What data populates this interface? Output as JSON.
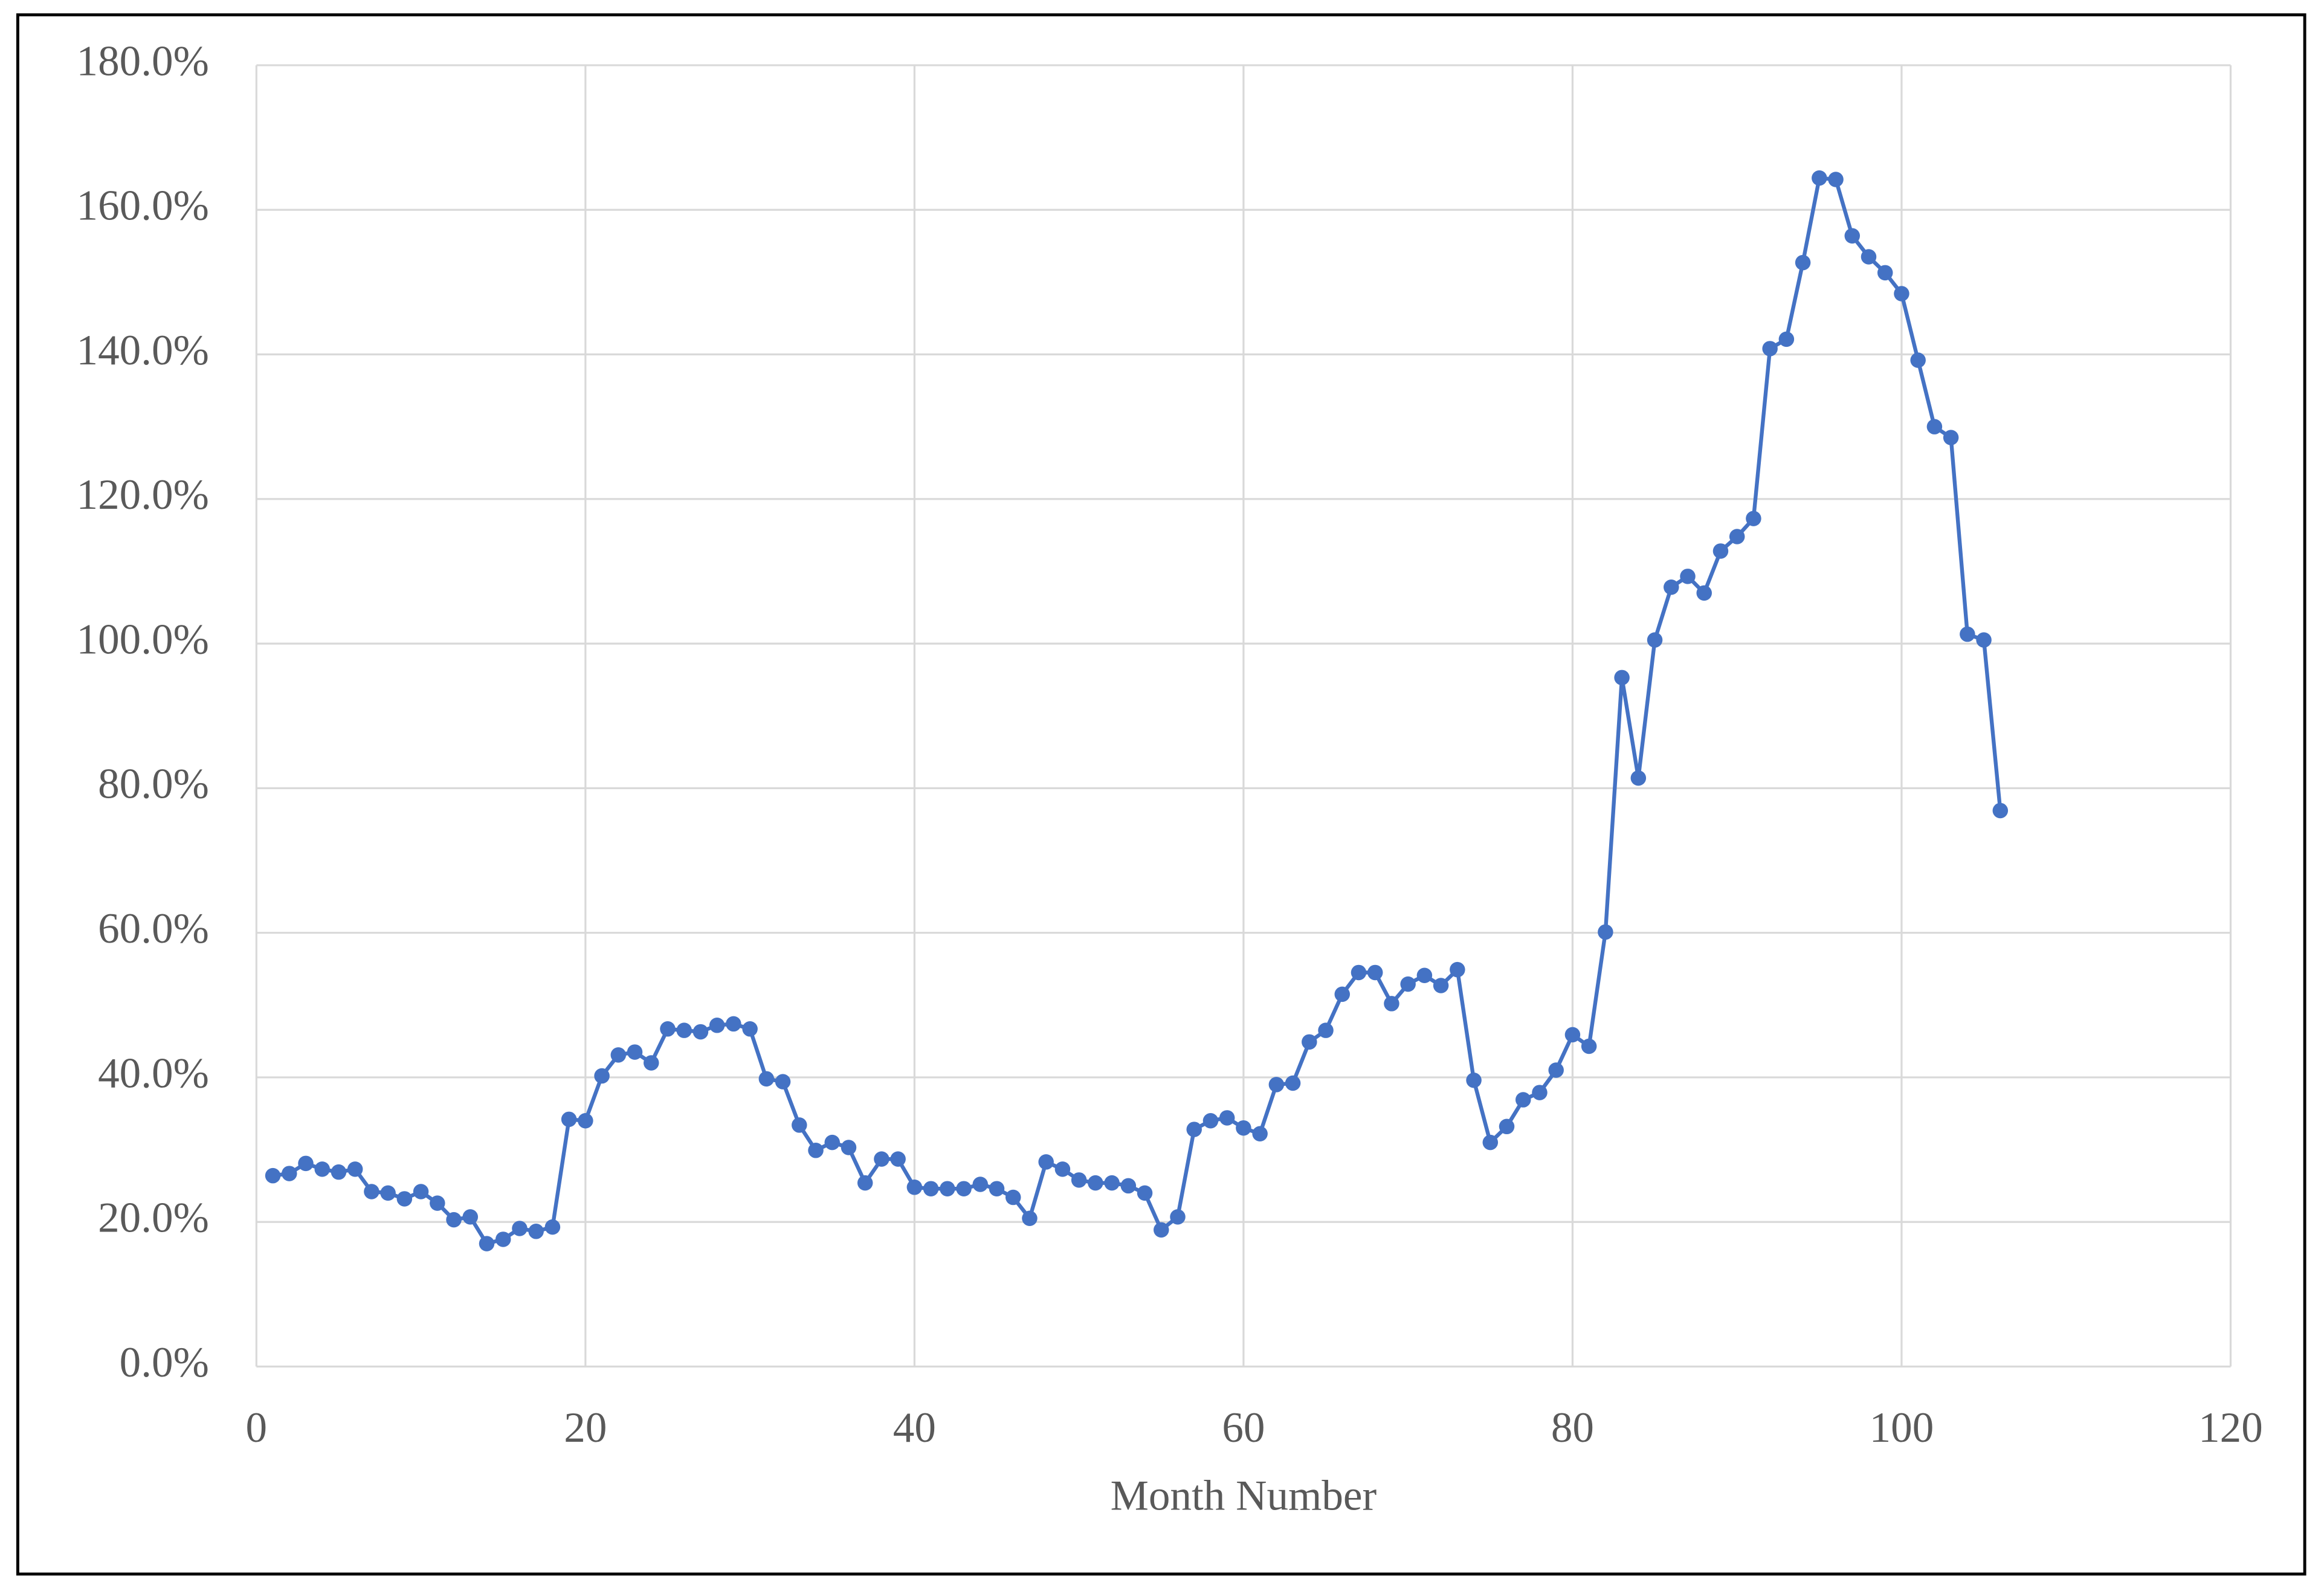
{
  "chart_data": {
    "type": "line",
    "x_label": "Month Number",
    "x": [
      1,
      2,
      3,
      4,
      5,
      6,
      7,
      8,
      9,
      10,
      11,
      12,
      13,
      14,
      15,
      16,
      17,
      18,
      19,
      20,
      21,
      22,
      23,
      24,
      25,
      26,
      27,
      28,
      29,
      30,
      31,
      32,
      33,
      34,
      35,
      36,
      37,
      38,
      39,
      40,
      41,
      42,
      43,
      44,
      45,
      46,
      47,
      48,
      49,
      50,
      51,
      52,
      53,
      54,
      55,
      56,
      57,
      58,
      59,
      60,
      61,
      62,
      63,
      64,
      65,
      66,
      67,
      68,
      69,
      70,
      71,
      72,
      73,
      74,
      75,
      76,
      77,
      78,
      79,
      80,
      81,
      82,
      83,
      84,
      85,
      86,
      87,
      88,
      89,
      90,
      91,
      92,
      93,
      94,
      95,
      96,
      97,
      98,
      99,
      100,
      101,
      102,
      103,
      104,
      105,
      106
    ],
    "series": [
      {
        "color": "#4472c4",
        "values": [
          26.4,
          26.7,
          28.1,
          27.3,
          26.9,
          27.3,
          24.2,
          24.0,
          23.2,
          24.2,
          22.6,
          20.3,
          20.7,
          17.0,
          17.6,
          19.1,
          18.7,
          19.3,
          34.2,
          34.0,
          40.2,
          43.1,
          43.5,
          42.0,
          46.7,
          46.5,
          46.3,
          47.2,
          47.4,
          46.7,
          39.8,
          39.4,
          33.4,
          29.9,
          31.0,
          30.3,
          25.4,
          28.7,
          28.7,
          24.8,
          24.6,
          24.6,
          24.6,
          25.2,
          24.6,
          23.4,
          20.5,
          28.3,
          27.3,
          25.8,
          25.4,
          25.4,
          25.0,
          24.0,
          18.9,
          20.7,
          32.8,
          34.0,
          34.4,
          33.0,
          32.2,
          39.0,
          39.2,
          44.9,
          46.5,
          51.5,
          54.5,
          54.5,
          50.2,
          52.9,
          54.1,
          52.7,
          54.9,
          39.6,
          31.0,
          33.2,
          36.9,
          37.9,
          41.0,
          45.9,
          44.3,
          60.1,
          95.3,
          81.4,
          100.5,
          107.8,
          109.3,
          107.0,
          112.8,
          114.8,
          117.3,
          140.8,
          142.1,
          152.7,
          164.4,
          164.2,
          156.4,
          153.5,
          151.3,
          148.4,
          139.2,
          130.0,
          128.5,
          101.3,
          100.5,
          76.9
        ]
      }
    ],
    "xlim": [
      0,
      120
    ],
    "xticks": [
      0,
      20,
      40,
      60,
      80,
      100,
      120
    ],
    "ylim": [
      0,
      180
    ],
    "yticks": [
      {
        "value": 0,
        "label": "0.0%"
      },
      {
        "value": 20,
        "label": "20.0%"
      },
      {
        "value": 40,
        "label": "40.0%"
      },
      {
        "value": 60,
        "label": "60.0%"
      },
      {
        "value": 80,
        "label": "80.0%"
      },
      {
        "value": 100,
        "label": "100.0%"
      },
      {
        "value": 120,
        "label": "120.0%"
      },
      {
        "value": 140,
        "label": "140.0%"
      },
      {
        "value": 160,
        "label": "160.0%"
      },
      {
        "value": 180,
        "label": "180.0%"
      }
    ],
    "grid": true
  }
}
